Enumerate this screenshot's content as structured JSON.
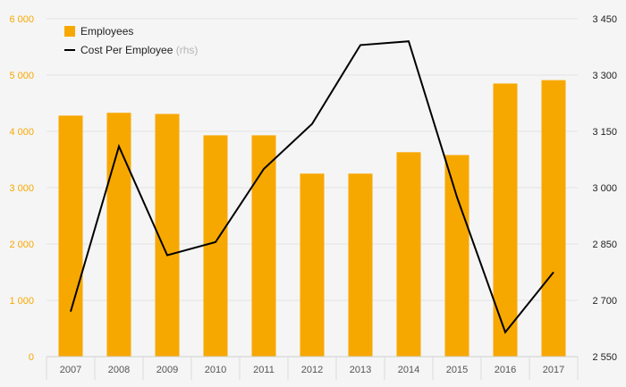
{
  "chart_data": {
    "type": "bar",
    "categories": [
      "2007",
      "2008",
      "2009",
      "2010",
      "2011",
      "2012",
      "2013",
      "2014",
      "2015",
      "2016",
      "2017"
    ],
    "series": [
      {
        "name": "Employees",
        "type": "bar",
        "axis": "left",
        "color": "#f7a800",
        "values": [
          4280,
          4330,
          4310,
          3930,
          3930,
          3250,
          3250,
          3630,
          3580,
          4850,
          4910
        ]
      },
      {
        "name": "Cost Per Employee",
        "type": "line",
        "axis": "right",
        "color": "#000000",
        "values": [
          2670,
          3110,
          2820,
          2855,
          3050,
          3170,
          3380,
          3390,
          2975,
          2615,
          2775
        ]
      }
    ],
    "legend": {
      "position": "top-left",
      "items": [
        {
          "label": "Employees",
          "suffix": "",
          "color": "#f7a800"
        },
        {
          "label": "Cost Per Employee",
          "suffix": "(rhs)",
          "color": "#000000"
        }
      ]
    },
    "y_left": {
      "ylim": [
        0,
        6000
      ],
      "ticks": [
        0,
        1000,
        2000,
        3000,
        4000,
        5000,
        6000
      ],
      "tick_labels": [
        "0",
        "1 000",
        "2 000",
        "3 000",
        "4 000",
        "5 000",
        "6 000"
      ],
      "color": "#f7a800"
    },
    "y_right": {
      "ylim": [
        2550,
        3450
      ],
      "ticks": [
        2550,
        2700,
        2850,
        3000,
        3150,
        3300,
        3450
      ],
      "tick_labels": [
        "2 550",
        "2 700",
        "2 850",
        "3 000",
        "3 150",
        "3 300",
        "3 450"
      ],
      "color": "#222222"
    },
    "grid": true,
    "title": "",
    "xlabel": "",
    "ylabel": ""
  }
}
